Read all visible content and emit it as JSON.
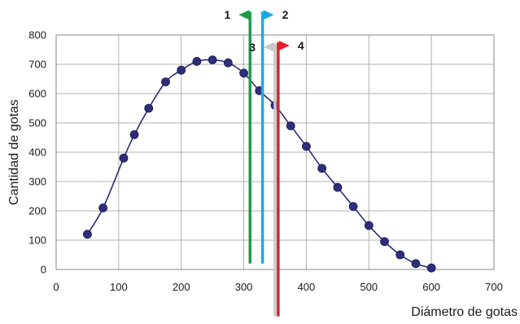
{
  "chart_data": {
    "type": "scatter",
    "xlabel": "Diámetro de gotas",
    "ylabel": "Cantidad de gotas",
    "xlim": [
      0,
      700
    ],
    "ylim": [
      0,
      800
    ],
    "x_ticks": [
      "0",
      "100",
      "200",
      "300",
      "400",
      "500",
      "600",
      "700"
    ],
    "y_ticks": [
      "0",
      "100",
      "200",
      "300",
      "400",
      "500",
      "600",
      "700",
      "800"
    ],
    "grid": true,
    "series": [
      {
        "x": [
          50,
          75,
          108,
          125,
          148,
          175,
          200,
          225,
          250,
          275,
          300,
          325,
          350,
          375,
          400,
          425,
          450,
          475,
          500,
          525,
          550,
          575,
          600
        ],
        "y": [
          120,
          210,
          380,
          460,
          550,
          640,
          680,
          710,
          715,
          705,
          670,
          610,
          560,
          490,
          420,
          345,
          280,
          215,
          150,
          95,
          50,
          20,
          5
        ],
        "color": "#2e2e7a",
        "line_color": "#1f1f6e"
      }
    ],
    "markers": [
      {
        "label": "1",
        "x": 310,
        "color": "#1e9b48",
        "direction": "left",
        "y_top": 880,
        "y_bottom": 20
      },
      {
        "label": "2",
        "x": 330,
        "color": "#1aa9e6",
        "direction": "right",
        "y_top": 880,
        "y_bottom": 20
      },
      {
        "label": "3",
        "x": 350,
        "color": "#c9c9c9",
        "direction": "left",
        "y_top": 770,
        "y_bottom": -160
      },
      {
        "label": "4",
        "x": 355,
        "color": "#e0202a",
        "direction": "right",
        "y_top": 775,
        "y_bottom": -160
      }
    ]
  }
}
